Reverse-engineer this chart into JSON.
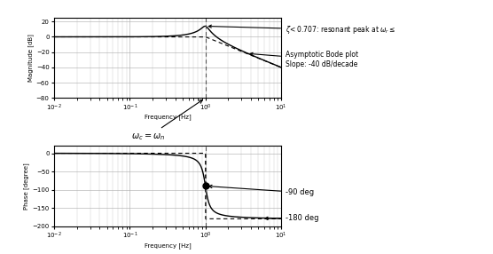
{
  "m": 0.1,
  "omega0": 1.0,
  "K": 1.0,
  "mag_ylim": [
    -80,
    25
  ],
  "phase_ylim": [
    -200,
    20
  ],
  "bg_color": "#ffffff",
  "grid_color": "#aaaaaa",
  "vline_color": "#555555",
  "xlabel_mag": "Frequency [Hz]",
  "xlabel_phase": "Frequency [Hz]",
  "ylabel_mag": "Magnitude [dB]",
  "ylabel_phase": "Phase [degree]",
  "annot1": "zeta< 0.707: resonant peak at wr<=",
  "annot2_line1": "Asymptotic Bode plot",
  "annot2_line2": "Slope: -40 dB/decade",
  "annot4": "-90 deg",
  "annot5": "-180 deg"
}
